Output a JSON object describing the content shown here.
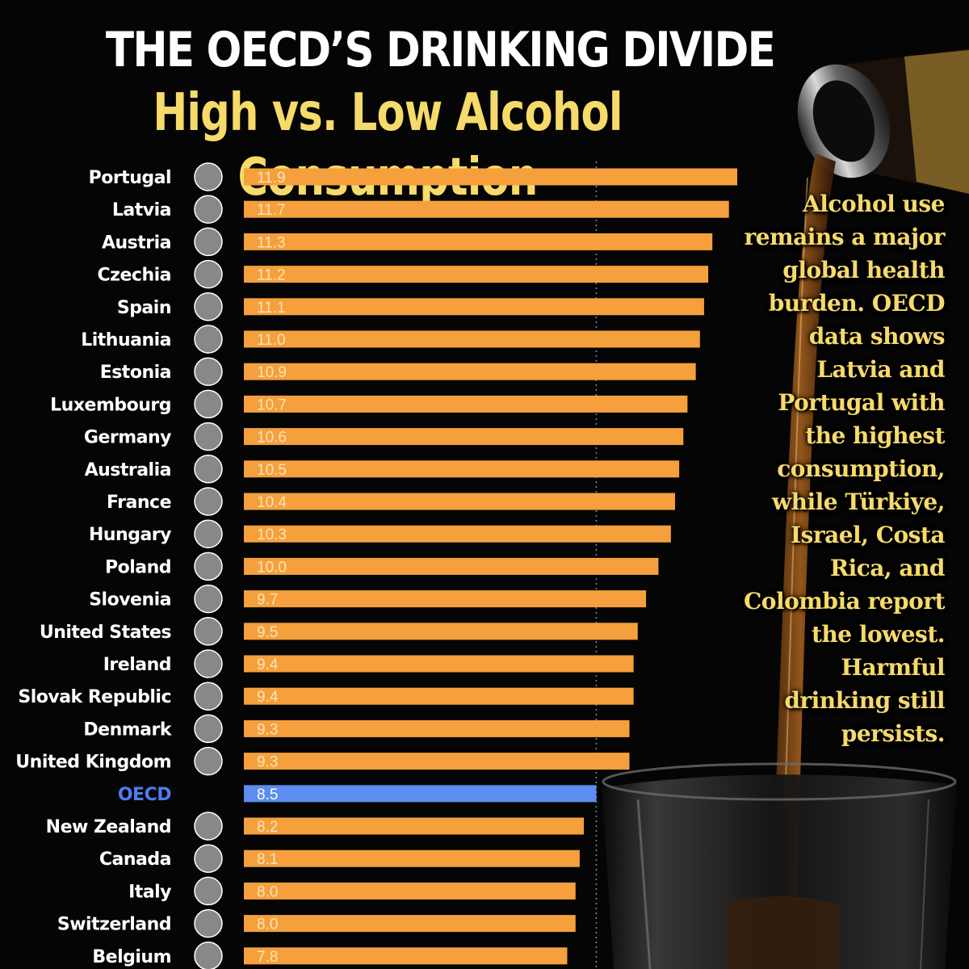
{
  "header": {
    "title": "THE OECD’S DRINKING DIVIDE",
    "subtitle": "High vs. Low Alcohol Consumption"
  },
  "side_text": "Alcohol use remains a major global health burden. OECD data shows Latvia and Portugal with the highest consumption, while Türkiye, Israel, Costa Rica, and Colombia report the lowest. Harmful drinking still persists.",
  "colors": {
    "bar": "#f5a03c",
    "highlight_bar": "#5b8ef0",
    "highlight_label": "#4f7cf0",
    "label": "#ffffff",
    "value_label": "#ffe3b8",
    "title": "#ffffff",
    "subtitle": "#f6da6a",
    "reference_line": "#6f8fbf"
  },
  "chart_data": {
    "type": "bar",
    "orientation": "horizontal",
    "categories": [
      "Portugal",
      "Latvia",
      "Austria",
      "Czechia",
      "Spain",
      "Lithuania",
      "Estonia",
      "Luxembourg",
      "Germany",
      "Australia",
      "France",
      "Hungary",
      "Poland",
      "Slovenia",
      "United States",
      "Ireland",
      "Slovak Republic",
      "Denmark",
      "United Kingdom",
      "OECD",
      "New Zealand",
      "Canada",
      "Italy",
      "Switzerland",
      "Belgium"
    ],
    "values": [
      11.9,
      11.7,
      11.3,
      11.2,
      11.1,
      11.0,
      10.9,
      10.7,
      10.6,
      10.5,
      10.4,
      10.3,
      10.0,
      9.7,
      9.5,
      9.4,
      9.4,
      9.3,
      9.3,
      8.5,
      8.2,
      8.1,
      8.0,
      8.0,
      7.8
    ],
    "value_labels": [
      "11.9",
      "11.7",
      "11.3",
      "11.2",
      "11.1",
      "11.0",
      "10.9",
      "10.7",
      "10.6",
      "10.5",
      "10.4",
      "10.3",
      "10.0",
      "9.7",
      "9.5",
      "9.4",
      "9.4",
      "9.3",
      "9.3",
      "8.5",
      "8.2",
      "8.1",
      "8.0",
      "8.0",
      "7.8"
    ],
    "flags": [
      "portugal-flag-icon",
      "latvia-flag-icon",
      "austria-flag-icon",
      "czechia-flag-icon",
      "spain-flag-icon",
      "lithuania-flag-icon",
      "estonia-flag-icon",
      "luxembourg-flag-icon",
      "germany-flag-icon",
      "australia-flag-icon",
      "france-flag-icon",
      "hungary-flag-icon",
      "poland-flag-icon",
      "slovenia-flag-icon",
      "united-states-flag-icon",
      "ireland-flag-icon",
      "slovak-republic-flag-icon",
      "denmark-flag-icon",
      "united-kingdom-flag-icon",
      "",
      "new-zealand-flag-icon",
      "canada-flag-icon",
      "italy-flag-icon",
      "switzerland-flag-icon",
      "belgium-flag-icon"
    ],
    "highlight": "OECD",
    "reference_value": 8.5,
    "xlim": [
      0,
      11.9
    ],
    "grid": false,
    "legend": "none"
  }
}
